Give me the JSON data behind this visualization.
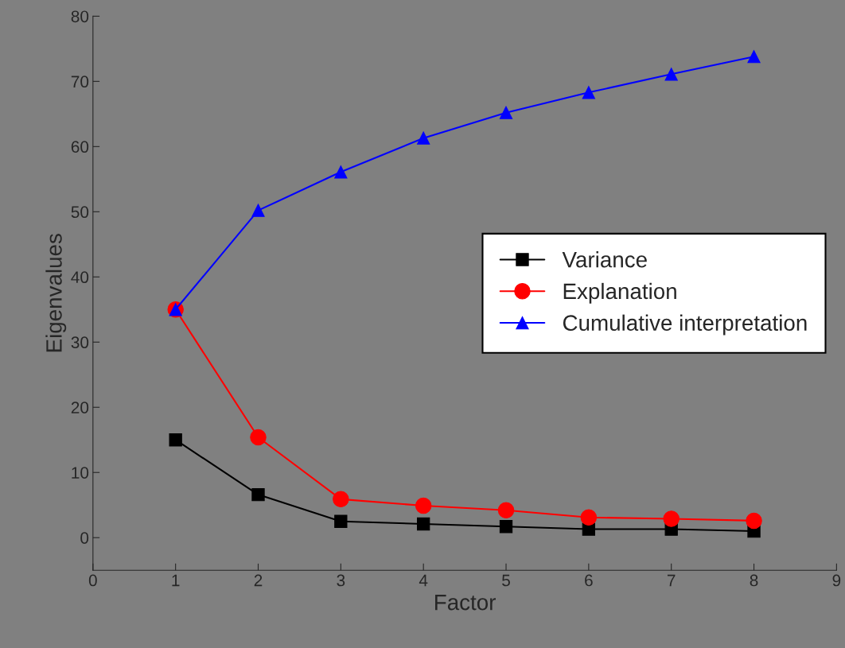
{
  "chart_data": {
    "type": "line",
    "xlabel": "Factor",
    "ylabel": "Eigenvalues",
    "x": [
      1,
      2,
      3,
      4,
      5,
      6,
      7,
      8
    ],
    "series": [
      {
        "name": "Variance",
        "color": "#000000",
        "marker": "square",
        "values": [
          15,
          6.6,
          2.5,
          2.1,
          1.7,
          1.3,
          1.3,
          1.0
        ]
      },
      {
        "name": "Explanation",
        "color": "#ff0000",
        "marker": "circle",
        "values": [
          35,
          15.4,
          5.9,
          4.9,
          4.2,
          3.1,
          2.9,
          2.6
        ]
      },
      {
        "name": "Cumulative interpretation",
        "color": "#0000ff",
        "marker": "triangle",
        "values": [
          35,
          50.2,
          56.1,
          61.3,
          65.2,
          68.3,
          71.1,
          73.8
        ]
      }
    ],
    "xlim": [
      0,
      9
    ],
    "xticks": [
      0,
      1,
      2,
      3,
      4,
      5,
      6,
      7,
      8,
      9
    ],
    "ylim": [
      -5,
      80
    ],
    "yticks": [
      0,
      10,
      20,
      30,
      40,
      50,
      60,
      70,
      80
    ],
    "grid": false,
    "legend": "center right",
    "line_style": "solid"
  }
}
